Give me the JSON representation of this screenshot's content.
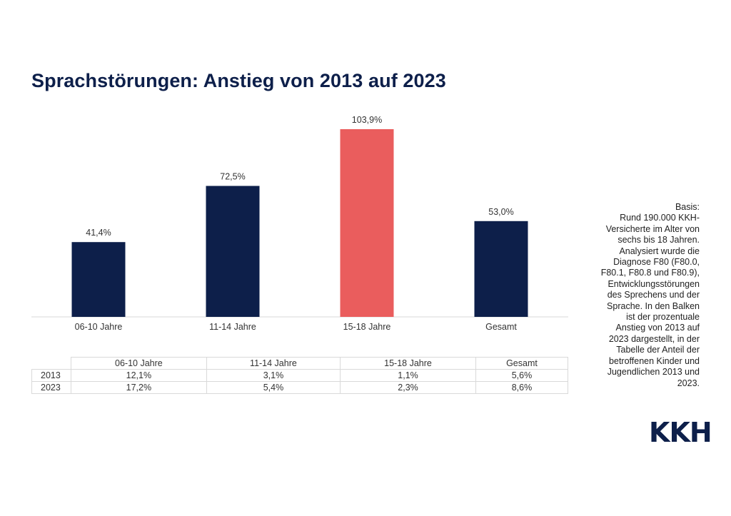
{
  "title": "Sprachstörungen: Anstieg von 2013 auf 2023",
  "colors": {
    "bar": "#0d1f4a",
    "highlight": "#ea5d5d",
    "axis": "#d9d9d9",
    "title": "#0d1f4a"
  },
  "chart_data": {
    "type": "bar",
    "title": "Sprachstörungen: Anstieg von 2013 auf 2023",
    "categories": [
      "06-10 Jahre",
      "11-14 Jahre",
      "15-18 Jahre",
      "Gesamt"
    ],
    "values": [
      41.4,
      72.5,
      103.9,
      53.0
    ],
    "value_labels": [
      "41,4%",
      "72,5%",
      "103,9%",
      "53,0%"
    ],
    "highlight_index": 2,
    "xlabel": "",
    "ylabel": "",
    "ylim": [
      0,
      103.9
    ],
    "grid": false,
    "legend": "none"
  },
  "table": {
    "columns": [
      "06-10 Jahre",
      "11-14 Jahre",
      "15-18 Jahre",
      "Gesamt"
    ],
    "rows": [
      {
        "label": "2013",
        "values": [
          "12,1%",
          "3,1%",
          "1,1%",
          "5,6%"
        ]
      },
      {
        "label": "2023",
        "values": [
          "17,2%",
          "5,4%",
          "2,3%",
          "8,6%"
        ]
      }
    ]
  },
  "basis": {
    "heading": "Basis:",
    "text": "Rund 190.000 KKH-Versicherte im Alter von sechs bis 18 Jahren. Analysiert wurde die Diagnose F80 (F80.0, F80.1, F80.8 und F80.9), Entwicklungsstörungen des Sprechens und der Sprache. In den Balken ist der prozentuale Anstieg von 2013 auf 2023 dargestellt, in der Tabelle der Anteil der betroffenen Kinder und Jugendlichen 2013 und 2023."
  },
  "logo": "KKH"
}
